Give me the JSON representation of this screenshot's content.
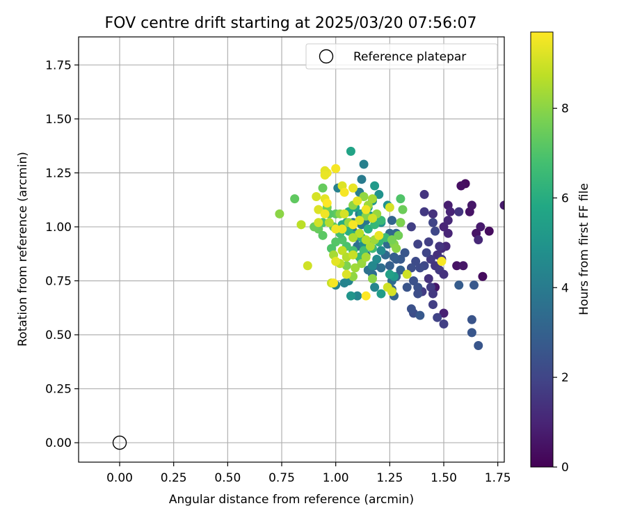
{
  "chart_data": {
    "type": "scatter",
    "title": "FOV centre drift starting at 2025/03/20 07:56:07",
    "xlabel": "Angular distance from reference (arcmin)",
    "ylabel": "Rotation from reference (arcmin)",
    "xlim": [
      -0.19,
      1.78
    ],
    "ylim": [
      -0.09,
      1.88
    ],
    "xticks": [
      "0.00",
      "0.25",
      "0.50",
      "0.75",
      "1.00",
      "1.25",
      "1.50",
      "1.75"
    ],
    "yticks": [
      "0.00",
      "0.25",
      "0.50",
      "0.75",
      "1.00",
      "1.25",
      "1.50",
      "1.75"
    ],
    "grid": true,
    "legend": {
      "position": "top-right",
      "entries": [
        "Reference platepar"
      ]
    },
    "reference_point": {
      "x": 0.0,
      "y": 0.0,
      "label": "Reference platepar"
    },
    "colorbar": {
      "label": "Hours from first FF file",
      "min": 0,
      "max": 9.7,
      "ticks": [
        "0",
        "2",
        "4",
        "6",
        "8"
      ],
      "colormap": "viridis"
    },
    "points": [
      [
        1.6,
        1.2,
        0.3
      ],
      [
        1.58,
        1.19,
        0.4
      ],
      [
        1.62,
        1.07,
        0.5
      ],
      [
        1.63,
        1.1,
        0.6
      ],
      [
        1.67,
        1.0,
        0.7
      ],
      [
        1.71,
        0.98,
        0.3
      ],
      [
        1.65,
        0.97,
        0.5
      ],
      [
        1.68,
        0.77,
        0.3
      ],
      [
        1.56,
        0.82,
        0.5
      ],
      [
        1.59,
        0.82,
        0.6
      ],
      [
        1.46,
        0.72,
        0.6
      ],
      [
        1.5,
        0.6,
        0.9
      ],
      [
        1.78,
        1.1,
        0.7
      ],
      [
        1.52,
        1.1,
        0.8
      ],
      [
        1.53,
        1.07,
        1.0
      ],
      [
        1.5,
        1.0,
        1.0
      ],
      [
        1.52,
        0.97,
        1.0
      ],
      [
        1.52,
        1.03,
        1.1
      ],
      [
        1.51,
        0.91,
        1.1
      ],
      [
        1.49,
        0.9,
        1.2
      ],
      [
        1.66,
        0.94,
        1.1
      ],
      [
        1.41,
        1.15,
        1.5
      ],
      [
        1.41,
        1.07,
        1.6
      ],
      [
        1.45,
        1.06,
        1.4
      ],
      [
        1.57,
        1.07,
        1.5
      ],
      [
        1.48,
        0.91,
        1.5
      ],
      [
        1.47,
        0.87,
        1.3
      ],
      [
        1.49,
        0.85,
        1.6
      ],
      [
        1.44,
        0.85,
        1.6
      ],
      [
        1.46,
        0.82,
        1.5
      ],
      [
        1.48,
        0.8,
        1.6
      ],
      [
        1.5,
        0.78,
        1.4
      ],
      [
        1.43,
        0.76,
        1.4
      ],
      [
        1.44,
        0.72,
        1.7
      ],
      [
        1.45,
        0.69,
        1.6
      ],
      [
        1.4,
        0.7,
        1.7
      ],
      [
        1.47,
        0.58,
        1.9
      ],
      [
        1.45,
        0.64,
        1.8
      ],
      [
        1.5,
        0.55,
        1.8
      ],
      [
        1.38,
        0.92,
        1.9
      ],
      [
        1.35,
        1.0,
        1.8
      ],
      [
        1.43,
        0.93,
        1.8
      ],
      [
        1.46,
        0.98,
        2.1
      ],
      [
        1.45,
        1.02,
        2.0
      ],
      [
        1.42,
        0.88,
        2.0
      ],
      [
        1.41,
        0.82,
        2.1
      ],
      [
        1.39,
        0.81,
        2.2
      ],
      [
        1.37,
        0.84,
        2.2
      ],
      [
        1.35,
        0.81,
        2.3
      ],
      [
        1.36,
        0.75,
        2.4
      ],
      [
        1.38,
        0.72,
        2.4
      ],
      [
        1.38,
        0.69,
        2.3
      ],
      [
        1.36,
        0.6,
        2.3
      ],
      [
        1.35,
        0.62,
        2.4
      ],
      [
        1.33,
        0.72,
        2.5
      ],
      [
        1.63,
        0.57,
        2.5
      ],
      [
        1.63,
        0.51,
        2.6
      ],
      [
        1.66,
        0.45,
        2.6
      ],
      [
        1.64,
        0.73,
        2.7
      ],
      [
        1.57,
        0.73,
        2.8
      ],
      [
        1.39,
        0.59,
        2.7
      ],
      [
        1.32,
        0.88,
        2.6
      ],
      [
        1.3,
        0.85,
        2.7
      ],
      [
        1.28,
        0.85,
        2.8
      ],
      [
        1.27,
        0.86,
        2.9
      ],
      [
        1.3,
        0.8,
        3.0
      ],
      [
        1.25,
        0.82,
        2.9
      ],
      [
        1.28,
        0.77,
        3.0
      ],
      [
        1.26,
        0.71,
        3.1
      ],
      [
        1.27,
        0.68,
        3.1
      ],
      [
        1.26,
        1.03,
        3.1
      ],
      [
        1.3,
        1.02,
        3.2
      ],
      [
        1.28,
        0.97,
        3.2
      ],
      [
        1.25,
        0.97,
        3.3
      ],
      [
        1.24,
        0.92,
        3.4
      ],
      [
        1.23,
        0.87,
        3.3
      ],
      [
        1.26,
        0.75,
        3.4
      ],
      [
        1.21,
        0.81,
        3.5
      ],
      [
        1.18,
        0.82,
        3.4
      ],
      [
        1.17,
        0.78,
        3.5
      ],
      [
        1.15,
        0.8,
        3.6
      ],
      [
        1.12,
        0.84,
        3.6
      ],
      [
        1.14,
        0.87,
        3.7
      ],
      [
        1.1,
        0.91,
        3.6
      ],
      [
        1.1,
        0.95,
        3.7
      ],
      [
        1.08,
        0.98,
        3.8
      ],
      [
        1.08,
        1.02,
        3.8
      ],
      [
        1.12,
        1.01,
        3.9
      ],
      [
        1.14,
        1.03,
        3.8
      ],
      [
        1.11,
        1.06,
        4.0
      ],
      [
        1.11,
        1.16,
        4.1
      ],
      [
        1.12,
        1.22,
        4.0
      ],
      [
        1.13,
        1.29,
        4.2
      ],
      [
        1.01,
        1.18,
        4.2
      ],
      [
        1.0,
        0.73,
        4.3
      ],
      [
        1.04,
        0.74,
        4.3
      ],
      [
        1.06,
        0.75,
        4.4
      ],
      [
        1.1,
        0.68,
        4.4
      ],
      [
        1.18,
        0.72,
        4.4
      ],
      [
        1.17,
        0.82,
        4.5
      ],
      [
        1.19,
        0.85,
        4.6
      ],
      [
        1.21,
        0.89,
        4.6
      ],
      [
        1.16,
        0.93,
        4.7
      ],
      [
        1.13,
        0.92,
        4.8
      ],
      [
        1.21,
        1.02,
        4.8
      ],
      [
        1.24,
        1.1,
        4.9
      ],
      [
        1.2,
        1.15,
        4.9
      ],
      [
        1.18,
        1.19,
        5.2
      ],
      [
        1.17,
        1.12,
        5.1
      ],
      [
        1.07,
        1.35,
        5.6
      ],
      [
        1.07,
        0.68,
        5.0
      ],
      [
        1.21,
        0.69,
        5.3
      ],
      [
        1.27,
        0.77,
        5.2
      ],
      [
        1.25,
        0.78,
        5.5
      ],
      [
        1.16,
        1.05,
        5.3
      ],
      [
        1.15,
        1.09,
        5.6
      ],
      [
        1.12,
        1.06,
        5.4
      ],
      [
        1.09,
        1.09,
        5.7
      ],
      [
        1.06,
        1.07,
        5.8
      ],
      [
        1.05,
        1.02,
        5.9
      ],
      [
        1.03,
        1.01,
        6.0
      ],
      [
        1.06,
        0.98,
        6.1
      ],
      [
        1.09,
        0.96,
        6.2
      ],
      [
        1.12,
        0.95,
        6.3
      ],
      [
        1.15,
        0.99,
        6.1
      ],
      [
        1.18,
        1.01,
        6.4
      ],
      [
        1.21,
        1.03,
        6.5
      ],
      [
        1.23,
        0.95,
        6.6
      ],
      [
        1.2,
        0.93,
        6.4
      ],
      [
        1.17,
        0.9,
        6.6
      ],
      [
        1.13,
        0.89,
        6.7
      ],
      [
        1.11,
        0.86,
        6.5
      ],
      [
        1.08,
        0.89,
        6.8
      ],
      [
        1.05,
        0.91,
        6.9
      ],
      [
        1.03,
        0.94,
        7.0
      ],
      [
        1.02,
        0.97,
        6.8
      ],
      [
        1.0,
        0.93,
        7.1
      ],
      [
        0.98,
        0.9,
        7.0
      ],
      [
        0.99,
        1.0,
        7.2
      ],
      [
        1.0,
        1.06,
        7.3
      ],
      [
        0.97,
        1.06,
        7.1
      ],
      [
        0.94,
        1.02,
        6.9
      ],
      [
        0.92,
        0.99,
        7.4
      ],
      [
        0.94,
        0.96,
        7.2
      ],
      [
        0.9,
        1.0,
        7.5
      ],
      [
        0.96,
        1.09,
        7.6
      ],
      [
        0.94,
        1.18,
        7.4
      ],
      [
        0.81,
        1.13,
        7.3
      ],
      [
        1.3,
        1.13,
        7.0
      ],
      [
        1.31,
        1.08,
        7.5
      ],
      [
        1.3,
        1.02,
        7.8
      ],
      [
        1.29,
        0.96,
        7.6
      ],
      [
        1.27,
        0.92,
        7.9
      ],
      [
        1.26,
        0.94,
        7.7
      ],
      [
        1.28,
        0.9,
        8.0
      ],
      [
        1.17,
        0.76,
        8.0
      ],
      [
        1.08,
        0.77,
        8.1
      ],
      [
        1.05,
        0.82,
        7.8
      ],
      [
        1.09,
        0.81,
        8.3
      ],
      [
        1.12,
        0.83,
        8.2
      ],
      [
        1.14,
        0.86,
        8.4
      ],
      [
        1.16,
        0.91,
        8.5
      ],
      [
        1.18,
        0.94,
        8.3
      ],
      [
        1.14,
        0.94,
        8.6
      ],
      [
        1.11,
        0.97,
        8.7
      ],
      [
        1.08,
        0.95,
        8.5
      ],
      [
        1.03,
        0.89,
        8.8
      ],
      [
        1.05,
        0.86,
        8.6
      ],
      [
        1.08,
        0.87,
        8.9
      ],
      [
        1.02,
        0.83,
        8.7
      ],
      [
        0.99,
        0.87,
        8.4
      ],
      [
        0.98,
        0.74,
        8.9
      ],
      [
        1.06,
        1.02,
        8.2
      ],
      [
        1.08,
        1.1,
        8.0
      ],
      [
        1.13,
        1.14,
        8.1
      ],
      [
        1.15,
        1.1,
        8.3
      ],
      [
        1.17,
        1.13,
        8.4
      ],
      [
        1.19,
        1.06,
        8.2
      ],
      [
        1.14,
        1.05,
        7.9
      ],
      [
        1.02,
        1.06,
        8.1
      ],
      [
        0.97,
        1.02,
        8.6
      ],
      [
        0.74,
        1.06,
        8.0
      ],
      [
        0.84,
        1.01,
        8.7
      ],
      [
        0.87,
        0.82,
        9.0
      ],
      [
        1.03,
        1.19,
        9.2
      ],
      [
        0.96,
        1.25,
        9.5
      ],
      [
        1.0,
        1.27,
        9.6
      ],
      [
        0.95,
        1.26,
        9.3
      ],
      [
        0.95,
        1.24,
        9.4
      ],
      [
        0.91,
        1.14,
        9.1
      ],
      [
        0.95,
        1.13,
        9.3
      ],
      [
        0.96,
        1.11,
        9.7
      ],
      [
        0.92,
        1.08,
        9.2
      ],
      [
        0.95,
        1.06,
        9.5
      ],
      [
        0.92,
        1.02,
        9.0
      ],
      [
        1.04,
        1.16,
        9.6
      ],
      [
        1.08,
        1.18,
        9.4
      ],
      [
        1.1,
        1.12,
        9.3
      ],
      [
        1.14,
        1.08,
        9.5
      ],
      [
        1.11,
        1.03,
        9.2
      ],
      [
        1.08,
        1.01,
        9.6
      ],
      [
        1.04,
        1.06,
        9.1
      ],
      [
        1.03,
        0.99,
        9.4
      ],
      [
        1.0,
        0.84,
        9.3
      ],
      [
        1.0,
        0.99,
        9.5
      ],
      [
        0.99,
        0.74,
        9.6
      ],
      [
        1.05,
        0.78,
        9.2
      ],
      [
        1.14,
        0.68,
        9.7
      ],
      [
        1.24,
        0.72,
        9.0
      ],
      [
        1.2,
        0.96,
        9.4
      ],
      [
        1.17,
        1.04,
        9.0
      ],
      [
        1.25,
        1.09,
        9.1
      ],
      [
        1.33,
        0.78,
        9.0
      ],
      [
        1.49,
        0.84,
        9.6
      ],
      [
        1.26,
        0.7,
        9.1
      ]
    ]
  }
}
